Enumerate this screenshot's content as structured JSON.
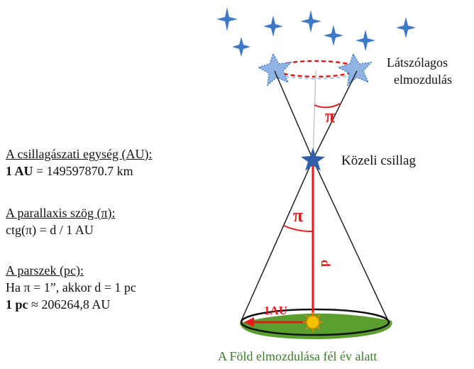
{
  "definitions": {
    "au_heading": "A csillagászati egység (AU):",
    "au_bold": "1 AU",
    "au_rest": " = 149597870.7 km",
    "parallax_heading": "A parallaxis szög (π):",
    "parallax_formula": "ctg(π) = d / 1 AU",
    "parsec_heading": "A parszek (pc):",
    "parsec_line1": "Ha π = 1”, akkor d = 1 pc",
    "parsec_bold": "1 pc",
    "parsec_rest": " ≈ 206264,8 AU"
  },
  "diagram": {
    "apparent_shift_line1": "Látszólagos",
    "apparent_shift_line2": "elmozdulás",
    "nearby_star_label": "Közeli csillag",
    "pi_symbol_upper": "π",
    "pi_symbol_lower": "π",
    "distance_label": "d",
    "au_arrow_label": "1AU",
    "earth_motion_caption": "A Föld elmozdulása fél év alatt"
  },
  "colors": {
    "star_blue": "#3d79c8",
    "red": "#e31b1b",
    "orbit_green": "#5a9e2f",
    "sun_yellow": "#f5c000",
    "caption_green": "#3a7d2a"
  }
}
